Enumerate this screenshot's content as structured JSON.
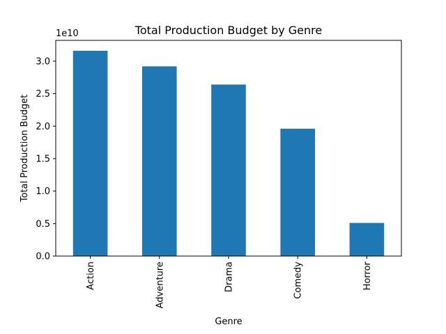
{
  "chart_data": {
    "type": "bar",
    "title": "Total Production Budget by Genre",
    "xlabel": "Genre",
    "ylabel": "Total Production Budget",
    "y_scale_label": "1e10",
    "categories": [
      "Action",
      "Adventure",
      "Drama",
      "Comedy",
      "Horror"
    ],
    "values": [
      31600000000,
      29200000000,
      26400000000,
      19600000000,
      5100000000
    ],
    "ylim": [
      0,
      33200000000
    ],
    "yticks": [
      0,
      5000000000,
      10000000000,
      15000000000,
      20000000000,
      25000000000,
      30000000000
    ],
    "ytick_labels": [
      "0.0",
      "0.5",
      "1.0",
      "1.5",
      "2.0",
      "2.5",
      "3.0"
    ],
    "bar_color": "#1f77b4",
    "grid": false,
    "legend": "none"
  }
}
